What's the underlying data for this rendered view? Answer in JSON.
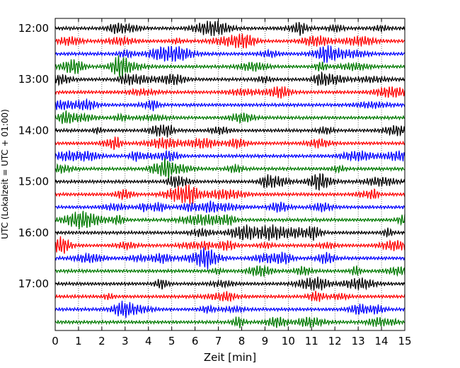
{
  "chart_data": {
    "type": "line",
    "title": "",
    "xlabel": "Zeit  [min]",
    "ylabel": "UTC (Lokalzeit = UTC + 01:00)",
    "xlim": [
      0,
      15
    ],
    "x_ticks": [
      "0",
      "1",
      "2",
      "3",
      "4",
      "5",
      "6",
      "7",
      "8",
      "9",
      "10",
      "11",
      "12",
      "13",
      "14",
      "15"
    ],
    "y_ticks": [
      "12:00",
      "13:00",
      "14:00",
      "15:00",
      "16:00",
      "17:00"
    ],
    "grid": "vertical dotted",
    "rows_per_hour": 4,
    "minutes_per_row": 15,
    "series": [
      {
        "row": 0,
        "start": "12:00",
        "color": "#000000"
      },
      {
        "row": 1,
        "start": "12:15",
        "color": "#ff0000"
      },
      {
        "row": 2,
        "start": "12:30",
        "color": "#0000ff"
      },
      {
        "row": 3,
        "start": "12:45",
        "color": "#007a00"
      },
      {
        "row": 4,
        "start": "13:00",
        "color": "#000000"
      },
      {
        "row": 5,
        "start": "13:15",
        "color": "#ff0000"
      },
      {
        "row": 6,
        "start": "13:30",
        "color": "#0000ff"
      },
      {
        "row": 7,
        "start": "13:45",
        "color": "#007a00"
      },
      {
        "row": 8,
        "start": "14:00",
        "color": "#000000"
      },
      {
        "row": 9,
        "start": "14:15",
        "color": "#ff0000"
      },
      {
        "row": 10,
        "start": "14:30",
        "color": "#0000ff"
      },
      {
        "row": 11,
        "start": "14:45",
        "color": "#007a00"
      },
      {
        "row": 12,
        "start": "15:00",
        "color": "#000000"
      },
      {
        "row": 13,
        "start": "15:15",
        "color": "#ff0000"
      },
      {
        "row": 14,
        "start": "15:30",
        "color": "#0000ff"
      },
      {
        "row": 15,
        "start": "15:45",
        "color": "#007a00"
      },
      {
        "row": 16,
        "start": "16:00",
        "color": "#000000"
      },
      {
        "row": 17,
        "start": "16:15",
        "color": "#ff0000"
      },
      {
        "row": 18,
        "start": "16:30",
        "color": "#0000ff"
      },
      {
        "row": 19,
        "start": "16:45",
        "color": "#007a00"
      },
      {
        "row": 20,
        "start": "17:00",
        "color": "#000000"
      },
      {
        "row": 21,
        "start": "17:15",
        "color": "#ff0000"
      },
      {
        "row": 22,
        "start": "17:30",
        "color": "#0000ff"
      },
      {
        "row": 23,
        "start": "17:45",
        "color": "#007a00"
      }
    ]
  }
}
